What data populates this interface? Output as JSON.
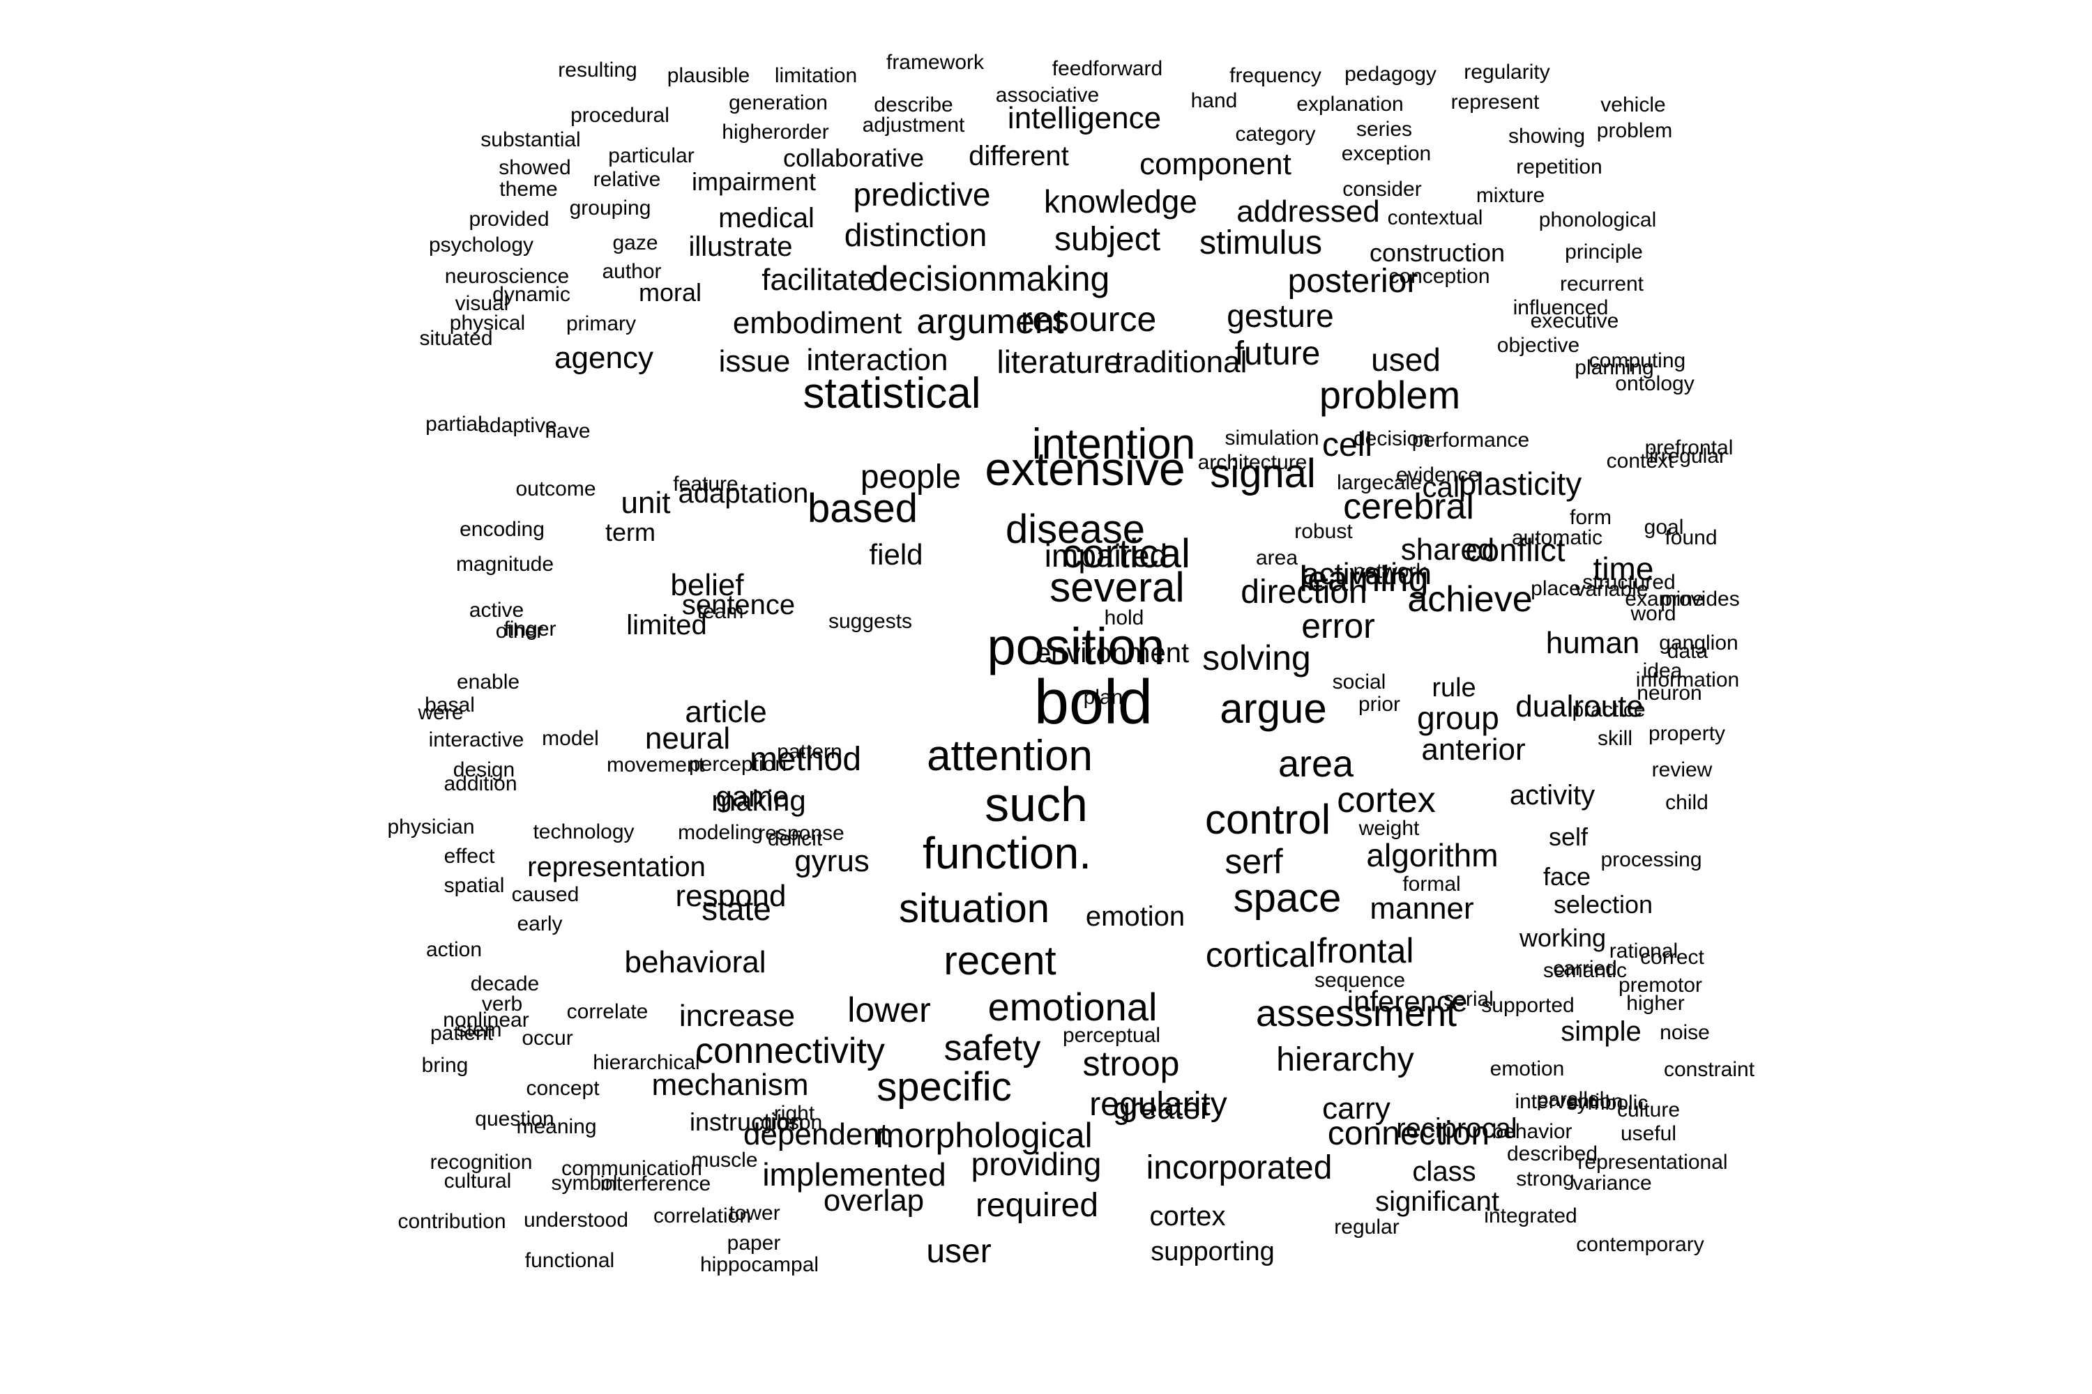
{
  "word_cloud": {
    "text_color": "#000000",
    "background": "#ffffff",
    "words": [
      "resulting",
      "plausible",
      "limitation",
      "framework",
      "feedforward",
      "frequency",
      "pedagogy",
      "regularity",
      "procedural",
      "generation",
      "describe",
      "associative",
      "hand",
      "explanation",
      "represent",
      "vehicle",
      "substantial",
      "higherorder",
      "adjustment",
      "intelligence",
      "category",
      "series",
      "showing",
      "problem",
      "particular",
      "collaborative",
      "different",
      "exception",
      "showed",
      "relative",
      "impairment",
      "component",
      "repetition",
      "theme",
      "predictive",
      "consider",
      "mixture",
      "provided",
      "grouping",
      "medical",
      "knowledge",
      "addressed",
      "contextual",
      "phonological",
      "psychology",
      "gaze",
      "illustrate",
      "distinction",
      "subject",
      "stimulus",
      "construction",
      "principle",
      "author",
      "neuroscience",
      "dynamic",
      "moral",
      "facilitate",
      "decisionmaking",
      "posterior",
      "conception",
      "recurrent",
      "visual",
      "influenced",
      "physical",
      "primary",
      "embodiment",
      "argument",
      "resource",
      "gesture",
      "executive",
      "situated",
      "objective",
      "agency",
      "issue",
      "interaction",
      "literature",
      "traditional",
      "future",
      "used",
      "computing",
      "statistical",
      "problem",
      "ontology",
      "planning",
      "cell",
      "intention",
      "simulation",
      "performance",
      "partial",
      "adaptive",
      "evidence",
      "decision",
      "architecture",
      "largecale",
      "people",
      "feature",
      "have",
      "extensive",
      "signal",
      "call",
      "plasticity",
      "context",
      "prefrontal",
      "irregular",
      "outcome",
      "unit",
      "adaptation",
      "based",
      "disease",
      "cerebral",
      "form",
      "encoding",
      "term",
      "shared",
      "conflict",
      "cortical",
      "area",
      "automatic",
      "robust",
      "goal",
      "field",
      "found",
      "magnitude",
      "impaired",
      "time",
      "network",
      "learning",
      "variable",
      "structured",
      "active",
      "belief",
      "several",
      "direction",
      "achieve",
      "examine",
      "provides",
      "sentence",
      "suggests",
      "hold",
      "activation",
      "solving",
      "other",
      "team",
      "place",
      "word",
      "finger",
      "limited",
      "environment",
      "position",
      "error",
      "human",
      "ganglion",
      "data",
      "enable",
      "rule",
      "prior",
      "idea",
      "plan",
      "dualroute",
      "information",
      "were",
      "social",
      "neuron",
      "basal",
      "article",
      "bold",
      "argue",
      "group",
      "practice",
      "property",
      "interactive",
      "model",
      "neural",
      "skill",
      "design",
      "attention",
      "method",
      "area",
      "anterior",
      "movement",
      "perception",
      "pattern",
      "review",
      "addition",
      "game",
      "making",
      "activity",
      "such",
      "control",
      "cortex",
      "child",
      "physician",
      "technology",
      "modeling",
      "response",
      "deficit",
      "weight",
      "self",
      "effect",
      "function.",
      "serf",
      "algorithm",
      "processing",
      "representation",
      "gyrus",
      "spatial",
      "caused",
      "respond",
      "formal",
      "face",
      "early",
      "state",
      "situation",
      "space",
      "manner",
      "selection",
      "action",
      "emotion",
      "working",
      "correct",
      "decade",
      "behavioral",
      "recent",
      "cortical",
      "frontal",
      "carried",
      "rational",
      "semantic",
      "verb",
      "sequence",
      "serial",
      "premotor",
      "nonlinear",
      "correlate",
      "inference",
      "supported",
      "higher",
      "stem",
      "increase",
      "lower",
      "emotional",
      "assessment",
      "occur",
      "perceptual",
      "simple",
      "noise",
      "patient",
      "hierarchical",
      "connectivity",
      "safety",
      "stroop",
      "hierarchy",
      "emotion",
      "constraint",
      "bring",
      "concept",
      "mechanism",
      "specific",
      "parallel",
      "culture",
      "instruction",
      "regularity",
      "meaning",
      "right",
      "greater",
      "intervention",
      "symbolic",
      "question",
      "gibson",
      "carry",
      "reciprocal",
      "behavior",
      "dependent",
      "morphological",
      "connection",
      "useful",
      "recognition",
      "described",
      "representational",
      "communication",
      "muscle",
      "providing",
      "class",
      "cultural",
      "symbol",
      "interference",
      "implemented",
      "incorporated",
      "strong",
      "variance",
      "overlap",
      "significant",
      "contribution",
      "understood",
      "correlation",
      "tower",
      "required",
      "cortex",
      "regular",
      "integrated",
      "paper",
      "contemporary",
      "functional",
      "hippocampal",
      "user",
      "supporting"
    ]
  }
}
